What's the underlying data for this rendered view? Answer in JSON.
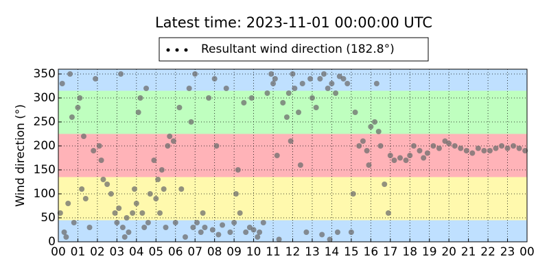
{
  "chart_data": {
    "type": "scatter",
    "title": "Latest time: 2023-11-01 00:00:00 UTC",
    "y_label": "Wind direction (°)",
    "xlim": [
      0,
      24
    ],
    "ylim": [
      0,
      360
    ],
    "xticks": [
      {
        "value": 0,
        "label": "00"
      },
      {
        "value": 1,
        "label": "01"
      },
      {
        "value": 2,
        "label": "02"
      },
      {
        "value": 3,
        "label": "03"
      },
      {
        "value": 4,
        "label": "04"
      },
      {
        "value": 5,
        "label": "05"
      },
      {
        "value": 6,
        "label": "06"
      },
      {
        "value": 7,
        "label": "07"
      },
      {
        "value": 8,
        "label": "08"
      },
      {
        "value": 9,
        "label": "09"
      },
      {
        "value": 10,
        "label": "10"
      },
      {
        "value": 11,
        "label": "11"
      },
      {
        "value": 12,
        "label": "12"
      },
      {
        "value": 13,
        "label": "13"
      },
      {
        "value": 14,
        "label": "14"
      },
      {
        "value": 15,
        "label": "15"
      },
      {
        "value": 16,
        "label": "16"
      },
      {
        "value": 17,
        "label": "17"
      },
      {
        "value": 18,
        "label": "18"
      },
      {
        "value": 19,
        "label": "19"
      },
      {
        "value": 20,
        "label": "20"
      },
      {
        "value": 21,
        "label": "21"
      },
      {
        "value": 22,
        "label": "22"
      },
      {
        "value": 23,
        "label": "23"
      },
      {
        "value": 24,
        "label": "00"
      }
    ],
    "yticks": [
      0,
      50,
      100,
      150,
      200,
      250,
      300,
      350
    ],
    "grid": true,
    "bands": [
      {
        "from": 0,
        "to": 45,
        "color": "#bfe0ff"
      },
      {
        "from": 45,
        "to": 135,
        "color": "#fff9ad"
      },
      {
        "from": 135,
        "to": 225,
        "color": "#ffb3b8"
      },
      {
        "from": 225,
        "to": 315,
        "color": "#bfffbf"
      },
      {
        "from": 315,
        "to": 360,
        "color": "#bfe0ff"
      }
    ],
    "x": [
      0.1,
      0.2,
      0.3,
      0.5,
      0.6,
      0.8,
      1.0,
      1.1,
      1.3,
      1.4,
      1.6,
      1.8,
      1.9,
      0.4,
      0.7,
      1.2,
      2.1,
      2.2,
      2.3,
      2.5,
      2.7,
      2.9,
      3.0,
      3.1,
      3.2,
      3.3,
      3.5,
      3.6,
      3.8,
      3.9,
      4.0,
      4.1,
      4.2,
      4.3,
      4.5,
      4.6,
      4.7,
      4.9,
      3.4,
      4.4,
      5.0,
      5.1,
      5.2,
      5.3,
      5.4,
      5.6,
      5.7,
      5.9,
      5.5,
      6.0,
      6.2,
      6.3,
      6.5,
      6.7,
      6.8,
      6.9,
      7.0,
      7.1,
      7.3,
      7.5,
      7.7,
      7.9,
      8.0,
      8.2,
      8.4,
      8.6,
      8.8,
      8.1,
      7.4,
      9.0,
      9.1,
      9.2,
      9.3,
      9.5,
      9.6,
      9.8,
      9.9,
      10.0,
      10.2,
      10.3,
      10.5,
      10.7,
      10.9,
      11.0,
      11.1,
      11.3,
      11.5,
      11.7,
      11.9,
      11.2,
      11.8,
      12.0,
      12.1,
      12.3,
      12.5,
      12.7,
      12.9,
      12.4,
      13.0,
      13.2,
      13.4,
      13.6,
      13.8,
      14.0,
      14.2,
      14.4,
      14.6,
      14.8,
      13.5,
      14.3,
      13.9,
      15.0,
      15.1,
      15.2,
      15.4,
      15.6,
      15.8,
      15.9,
      16.0,
      16.2,
      16.4,
      16.5,
      16.7,
      16.9,
      16.3,
      17.0,
      17.2,
      17.5,
      17.8,
      18.0,
      18.2,
      18.5,
      18.7,
      18.9,
      19.2,
      19.5,
      19.8,
      20.0,
      20.3,
      20.6,
      20.9,
      21.2,
      21.5,
      21.8,
      22.1,
      22.4,
      22.7,
      23.0,
      23.3,
      23.6,
      23.9
    ],
    "series": [
      {
        "name": "Resultant wind direction (182.8°)",
        "color": "#6e6e6e",
        "values": [
          60,
          330,
          20,
          80,
          350,
          40,
          280,
          300,
          220,
          90,
          30,
          190,
          340,
          10,
          260,
          110,
          200,
          170,
          130,
          120,
          100,
          60,
          40,
          70,
          350,
          30,
          50,
          20,
          60,
          110,
          80,
          270,
          300,
          60,
          320,
          40,
          100,
          170,
          10,
          30,
          90,
          130,
          60,
          150,
          110,
          200,
          220,
          210,
          30,
          40,
          280,
          110,
          10,
          320,
          250,
          30,
          350,
          40,
          20,
          30,
          300,
          25,
          340,
          15,
          35,
          320,
          20,
          200,
          60,
          40,
          100,
          150,
          60,
          290,
          20,
          30,
          300,
          25,
          10,
          20,
          40,
          310,
          350,
          330,
          340,
          5,
          290,
          260,
          210,
          180,
          310,
          350,
          320,
          270,
          330,
          20,
          340,
          160,
          300,
          280,
          340,
          350,
          320,
          330,
          310,
          345,
          340,
          330,
          15,
          20,
          5,
          20,
          100,
          270,
          200,
          210,
          190,
          160,
          240,
          250,
          230,
          200,
          120,
          60,
          330,
          180,
          170,
          175,
          170,
          180,
          200,
          190,
          175,
          185,
          200,
          195,
          210,
          205,
          200,
          195,
          190,
          185,
          195,
          190,
          190,
          195,
          200,
          195,
          200,
          195,
          190
        ]
      }
    ]
  }
}
